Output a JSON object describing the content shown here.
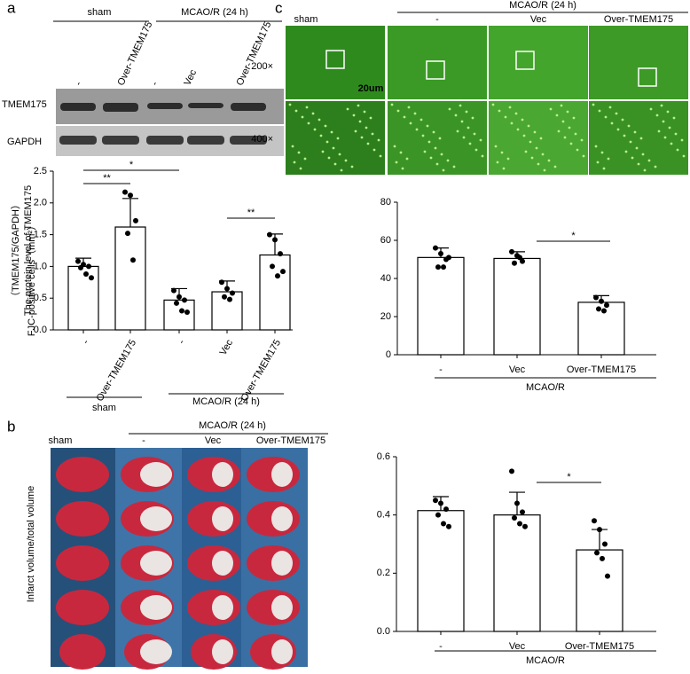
{
  "figure": {
    "panel_labels": [
      "a",
      "b",
      "c"
    ],
    "blot": {
      "groups": [
        "sham",
        "MCAO/R (24 h)"
      ],
      "lanes": [
        "-",
        "Over-TMEM175",
        "-",
        "Vec",
        "Over-TMEM175"
      ],
      "rows": [
        "TMEM175",
        "GAPDH"
      ]
    },
    "fjc_images": {
      "group": "MCAO/R (24 h)",
      "columns": [
        "sham",
        "-",
        "Vec",
        "Over-TMEM175"
      ],
      "rows": [
        "200×",
        "400×"
      ],
      "scale_bar": "20um"
    },
    "brain_slices": {
      "group": "MCAO/R (24 h)",
      "columns": [
        "sham",
        "-",
        "Vec",
        "Over-TMEM175"
      ]
    }
  },
  "chart_data": [
    {
      "type": "bar",
      "ylabel": "The protein level of TMEM175",
      "ylabel2": "（TMEM175/GAPDH）",
      "categories": [
        "-",
        "Over-TMEM175",
        "-",
        "Vec",
        "Over-TMEM175"
      ],
      "values": [
        1.0,
        1.62,
        0.47,
        0.6,
        1.18
      ],
      "errors": [
        0.13,
        0.45,
        0.18,
        0.17,
        0.33
      ],
      "points": [
        [
          1.08,
          1.03,
          1.0,
          0.98,
          0.88,
          0.82
        ],
        [
          2.17,
          2.12,
          1.72,
          1.52,
          1.1
        ],
        [
          0.62,
          0.52,
          0.47,
          0.42,
          0.3,
          0.28
        ],
        [
          0.75,
          0.65,
          0.58,
          0.52,
          0.48
        ],
        [
          1.5,
          1.42,
          1.2,
          1.0,
          0.85,
          0.92
        ]
      ],
      "group_labels": [
        "sham",
        "MCAO/R (24 h)"
      ],
      "annotations": [
        "**",
        "*",
        "**"
      ],
      "ylim": [
        0,
        2.5
      ],
      "yticks": [
        {
          "value": 0,
          "label": "0.0"
        },
        0.5,
        {
          "value": 1,
          "label": "1.0"
        },
        1.5,
        {
          "value": 2,
          "label": "2.0"
        },
        2.5
      ],
      "color": "#ffffff"
    },
    {
      "type": "bar",
      "ylabel": "FJC-positive cells（mm²）",
      "categories": [
        "-",
        "Vec",
        "Over-TMEM175"
      ],
      "values": [
        51,
        50.5,
        27.5
      ],
      "errors": [
        5,
        3.5,
        3.5
      ],
      "points": [
        [
          56,
          53,
          50,
          46,
          46,
          51
        ],
        [
          54,
          52,
          49,
          48,
          51
        ],
        [
          30,
          28,
          26,
          24,
          23
        ]
      ],
      "group_labels": [
        "MCAO/R"
      ],
      "annotations": [
        "*"
      ],
      "ylim": [
        0,
        80
      ],
      "yticks": [
        0,
        20,
        40,
        60,
        80
      ],
      "color": "#ffffff"
    },
    {
      "type": "bar",
      "ylabel": "Infarct volume/total volume",
      "categories": [
        "-",
        "Vec",
        "Over-TMEM175"
      ],
      "values": [
        0.415,
        0.4,
        0.28
      ],
      "errors": [
        0.048,
        0.078,
        0.07
      ],
      "points": [
        [
          0.45,
          0.44,
          0.42,
          0.4,
          0.37,
          0.36
        ],
        [
          0.55,
          0.44,
          0.41,
          0.39,
          0.37,
          0.36
        ],
        [
          0.38,
          0.35,
          0.3,
          0.27,
          0.25,
          0.19
        ]
      ],
      "group_labels": [
        "MCAO/R"
      ],
      "annotations": [
        "*"
      ],
      "ylim": [
        0,
        0.6
      ],
      "yticks": [
        {
          "value": 0,
          "label": "0.0"
        },
        0.2,
        0.4,
        0.6
      ],
      "color": "#ffffff"
    }
  ]
}
